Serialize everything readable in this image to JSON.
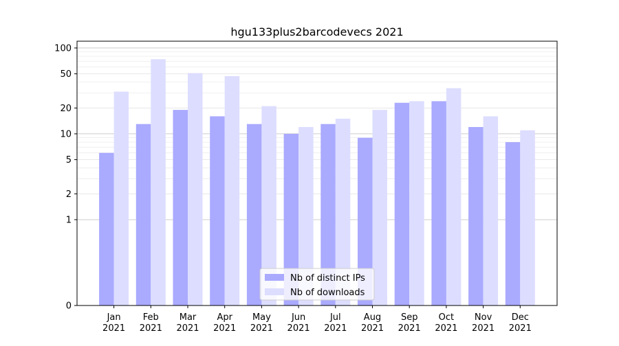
{
  "chart_data": {
    "type": "bar",
    "title": "hgu133plus2barcodevecs 2021",
    "xlabel": "",
    "ylabel": "",
    "y_scale": "symlog",
    "ylim": [
      0,
      120
    ],
    "y_ticks": [
      0,
      1,
      2,
      5,
      10,
      20,
      50,
      100
    ],
    "y_tick_labels": [
      "0",
      "1",
      "2",
      "5",
      "10",
      "20",
      "50",
      "100"
    ],
    "categories": [
      "Jan\n2021",
      "Feb\n2021",
      "Mar\n2021",
      "Apr\n2021",
      "May\n2021",
      "Jun\n2021",
      "Jul\n2021",
      "Aug\n2021",
      "Sep\n2021",
      "Oct\n2021",
      "Nov\n2021",
      "Dec\n2021"
    ],
    "series": [
      {
        "name": "Nb of distinct IPs",
        "color": "#aaaaff",
        "values": [
          6,
          13,
          19,
          16,
          13,
          10,
          13,
          9,
          23,
          24,
          12,
          8
        ]
      },
      {
        "name": "Nb of downloads",
        "color": "#ddddff",
        "values": [
          31,
          74,
          51,
          47,
          21,
          12,
          15,
          19,
          24,
          34,
          16,
          11
        ]
      }
    ],
    "grid": true,
    "legend_position": "bottom-center"
  }
}
